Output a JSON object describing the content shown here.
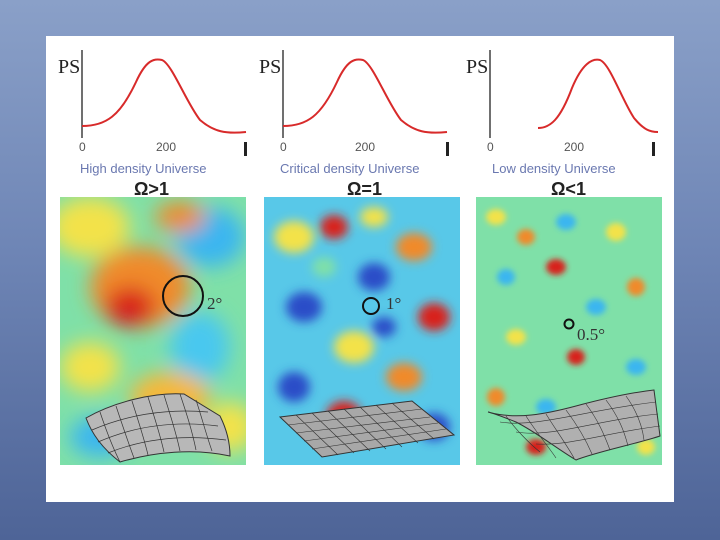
{
  "panels": [
    {
      "ps_label": "PS",
      "tick_zero": "0",
      "tick_peak": "200",
      "caption": "High density Universe",
      "omega": "Ω>1",
      "angle": "2°",
      "geometry": "closed (spherical)"
    },
    {
      "ps_label": "PS",
      "tick_zero": "0",
      "tick_peak": "200",
      "caption": "Critical density Universe",
      "omega": "Ω=1",
      "angle": "1°",
      "geometry": "flat"
    },
    {
      "ps_label": "PS",
      "tick_zero": "0",
      "tick_peak": "200",
      "caption": "Low density Universe",
      "omega": "Ω<1",
      "angle": "0.5°",
      "geometry": "open (saddle)"
    }
  ],
  "colors": {
    "curve": "#d82a2a",
    "background_dark": "#4e6497",
    "caption": "#6a78b0"
  }
}
